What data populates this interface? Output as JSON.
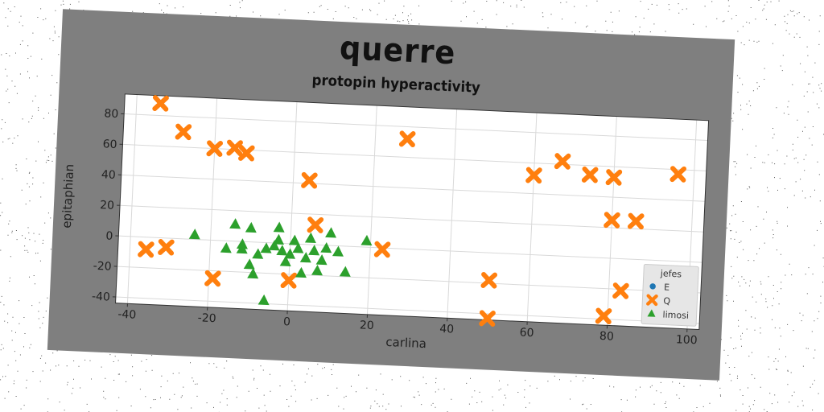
{
  "chart_data": {
    "type": "scatter",
    "title": "querre",
    "subtitle": "protopin hyperactivity",
    "xlabel": "carlina",
    "ylabel": "epitaphian",
    "xlim": [
      -43,
      103
    ],
    "ylim": [
      -44,
      93
    ],
    "xticks": [
      -40,
      -20,
      0,
      20,
      40,
      60,
      80,
      100
    ],
    "yticks": [
      -40,
      -20,
      0,
      20,
      40,
      60,
      80
    ],
    "grid": true,
    "legend": {
      "title": "jefes",
      "position": "lower-right"
    },
    "series": [
      {
        "name": "E",
        "marker": "circle",
        "color": "#1f77b4",
        "points": []
      },
      {
        "name": "Q",
        "marker": "x",
        "color": "#ff7f0e",
        "points": [
          [
            -34,
            88
          ],
          [
            -28,
            70
          ],
          [
            -20,
            60
          ],
          [
            -15,
            61
          ],
          [
            -12,
            58
          ],
          [
            4,
            42
          ],
          [
            28,
            72
          ],
          [
            -36,
            -8
          ],
          [
            -31,
            -6
          ],
          [
            -19,
            -25
          ],
          [
            6,
            13
          ],
          [
            23,
            -1
          ],
          [
            0,
            -24
          ],
          [
            50,
            -18
          ],
          [
            50,
            -43
          ],
          [
            60,
            52
          ],
          [
            67,
            62
          ],
          [
            74,
            54
          ],
          [
            80,
            53
          ],
          [
            80,
            25
          ],
          [
            86,
            25
          ],
          [
            96,
            57
          ],
          [
            83,
            -21
          ],
          [
            79,
            -38
          ]
        ]
      },
      {
        "name": "limosi",
        "marker": "triangle",
        "color": "#2ca02c",
        "points": [
          [
            -24,
            3
          ],
          [
            -14,
            11
          ],
          [
            -10,
            9
          ],
          [
            -3,
            10
          ],
          [
            10,
            8
          ],
          [
            19,
            4
          ],
          [
            -16,
            -5
          ],
          [
            -12,
            -2
          ],
          [
            -8,
            -8
          ],
          [
            -6,
            -4
          ],
          [
            -4,
            -2
          ],
          [
            -2,
            -5
          ],
          [
            0,
            -7
          ],
          [
            2,
            -3
          ],
          [
            4,
            -9
          ],
          [
            6,
            -4
          ],
          [
            8,
            -10
          ],
          [
            -10,
            -15
          ],
          [
            -9,
            -21
          ],
          [
            -1,
            -12
          ],
          [
            3,
            -19
          ],
          [
            7,
            -17
          ],
          [
            12,
            -4
          ],
          [
            14,
            -17
          ],
          [
            1,
            2
          ],
          [
            5,
            4
          ],
          [
            9,
            -2
          ],
          [
            -6,
            -38
          ],
          [
            -12,
            -5
          ],
          [
            -3,
            2
          ]
        ]
      }
    ]
  }
}
